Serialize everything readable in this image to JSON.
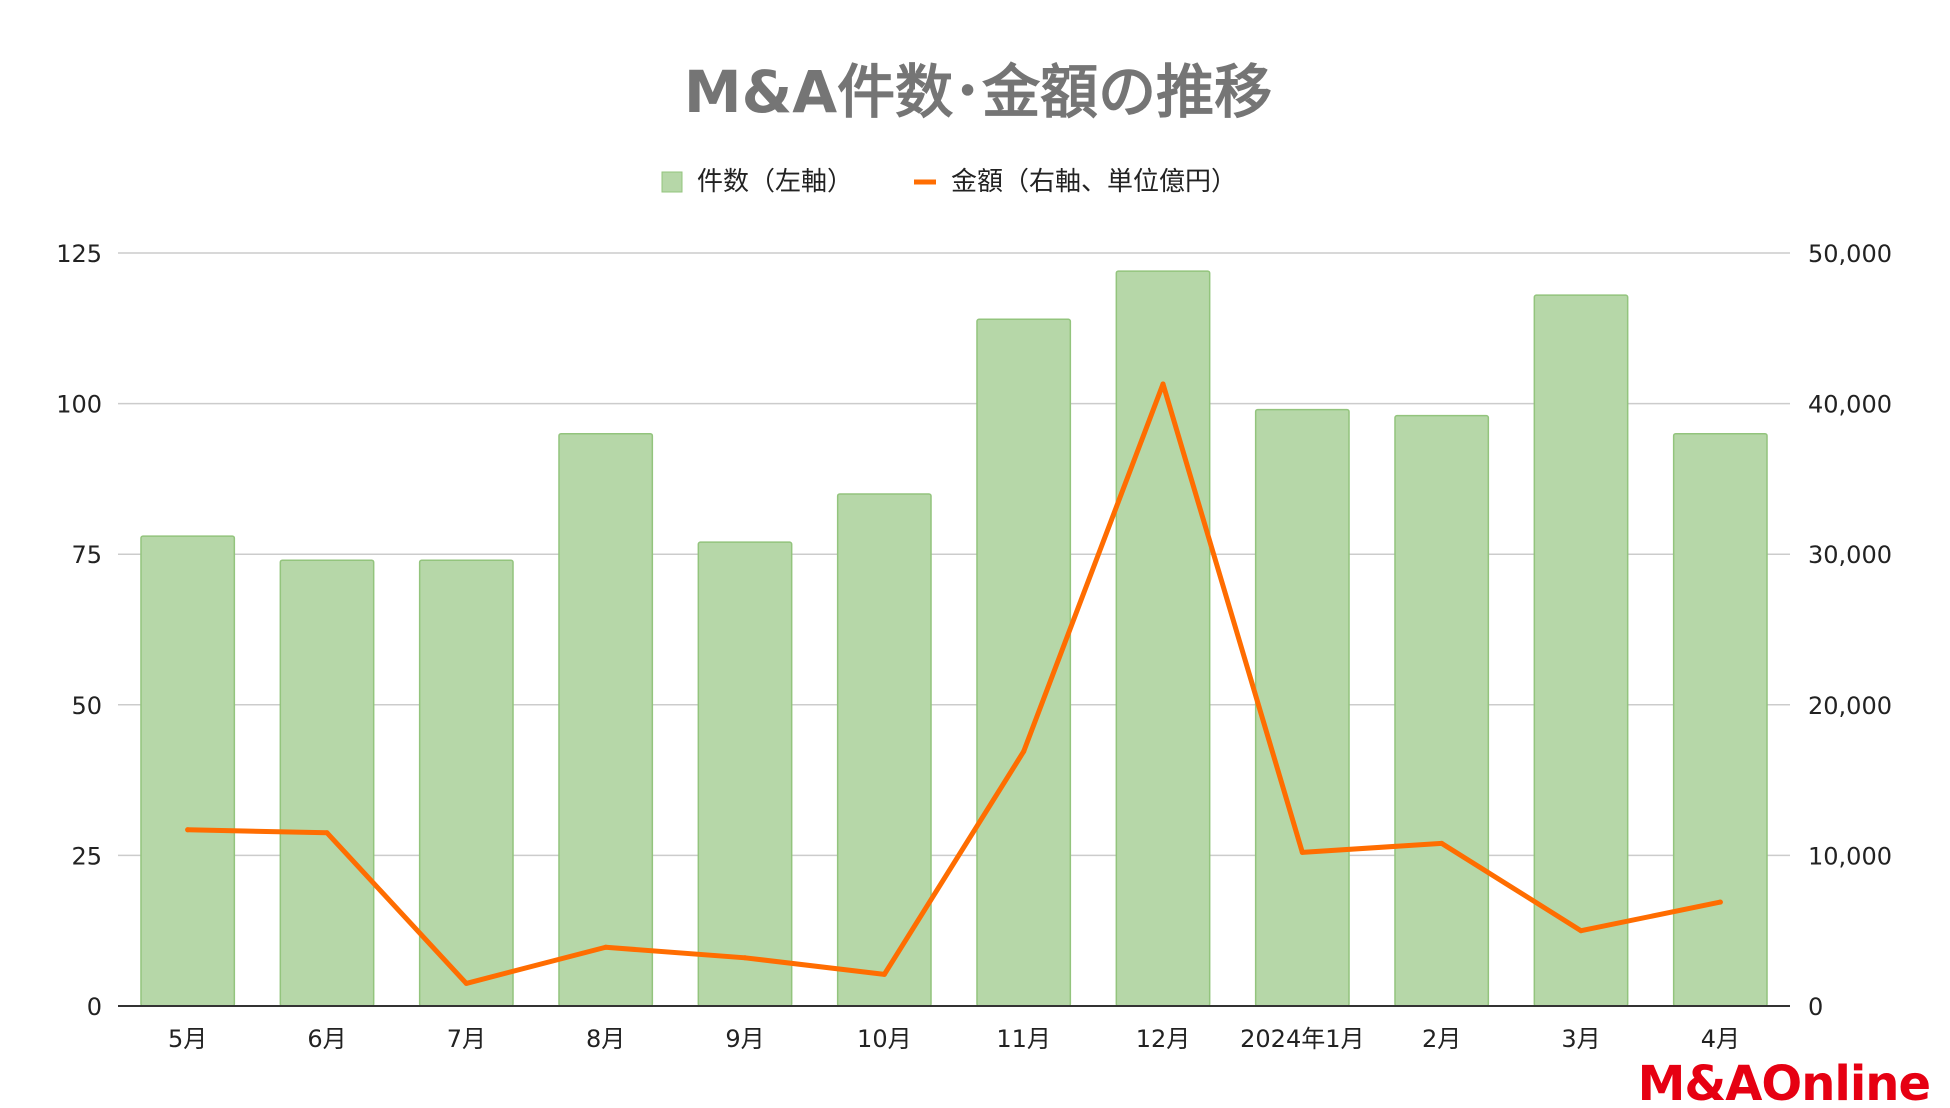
{
  "chart_data": {
    "type": "bar",
    "title": "M&A件数･金額の推移",
    "categories": [
      "5月",
      "6月",
      "7月",
      "8月",
      "9月",
      "10月",
      "11月",
      "12月",
      "2024年1月",
      "2月",
      "3月",
      "4月"
    ],
    "series": [
      {
        "name": "件数（左軸）",
        "type": "bar",
        "axis": "left",
        "values": [
          78,
          74,
          74,
          95,
          77,
          85,
          114,
          122,
          99,
          98,
          118,
          95
        ]
      },
      {
        "name": "金額（右軸、単位億円）",
        "type": "line",
        "axis": "right",
        "values": [
          11700,
          11500,
          1500,
          3900,
          3200,
          2100,
          16900,
          41300,
          10200,
          10800,
          5000,
          6900
        ]
      }
    ],
    "y_left": {
      "range": [
        0,
        125
      ],
      "ticks": [
        "0",
        "25",
        "50",
        "75",
        "100",
        "125"
      ]
    },
    "y_right": {
      "range": [
        0,
        50000
      ],
      "ticks": [
        "0",
        "10,000",
        "20,000",
        "30,000",
        "40,000",
        "50,000"
      ]
    },
    "grid": true,
    "legend": "top-center",
    "colors": {
      "bar": "#b6d7a8",
      "bar_border": "#93c47d",
      "line": "#ff6d01",
      "title": "#757575",
      "text": "#222222",
      "grid": "#cccccc",
      "axis": "#333333"
    }
  },
  "logo": {
    "text": "M&AOnline"
  }
}
